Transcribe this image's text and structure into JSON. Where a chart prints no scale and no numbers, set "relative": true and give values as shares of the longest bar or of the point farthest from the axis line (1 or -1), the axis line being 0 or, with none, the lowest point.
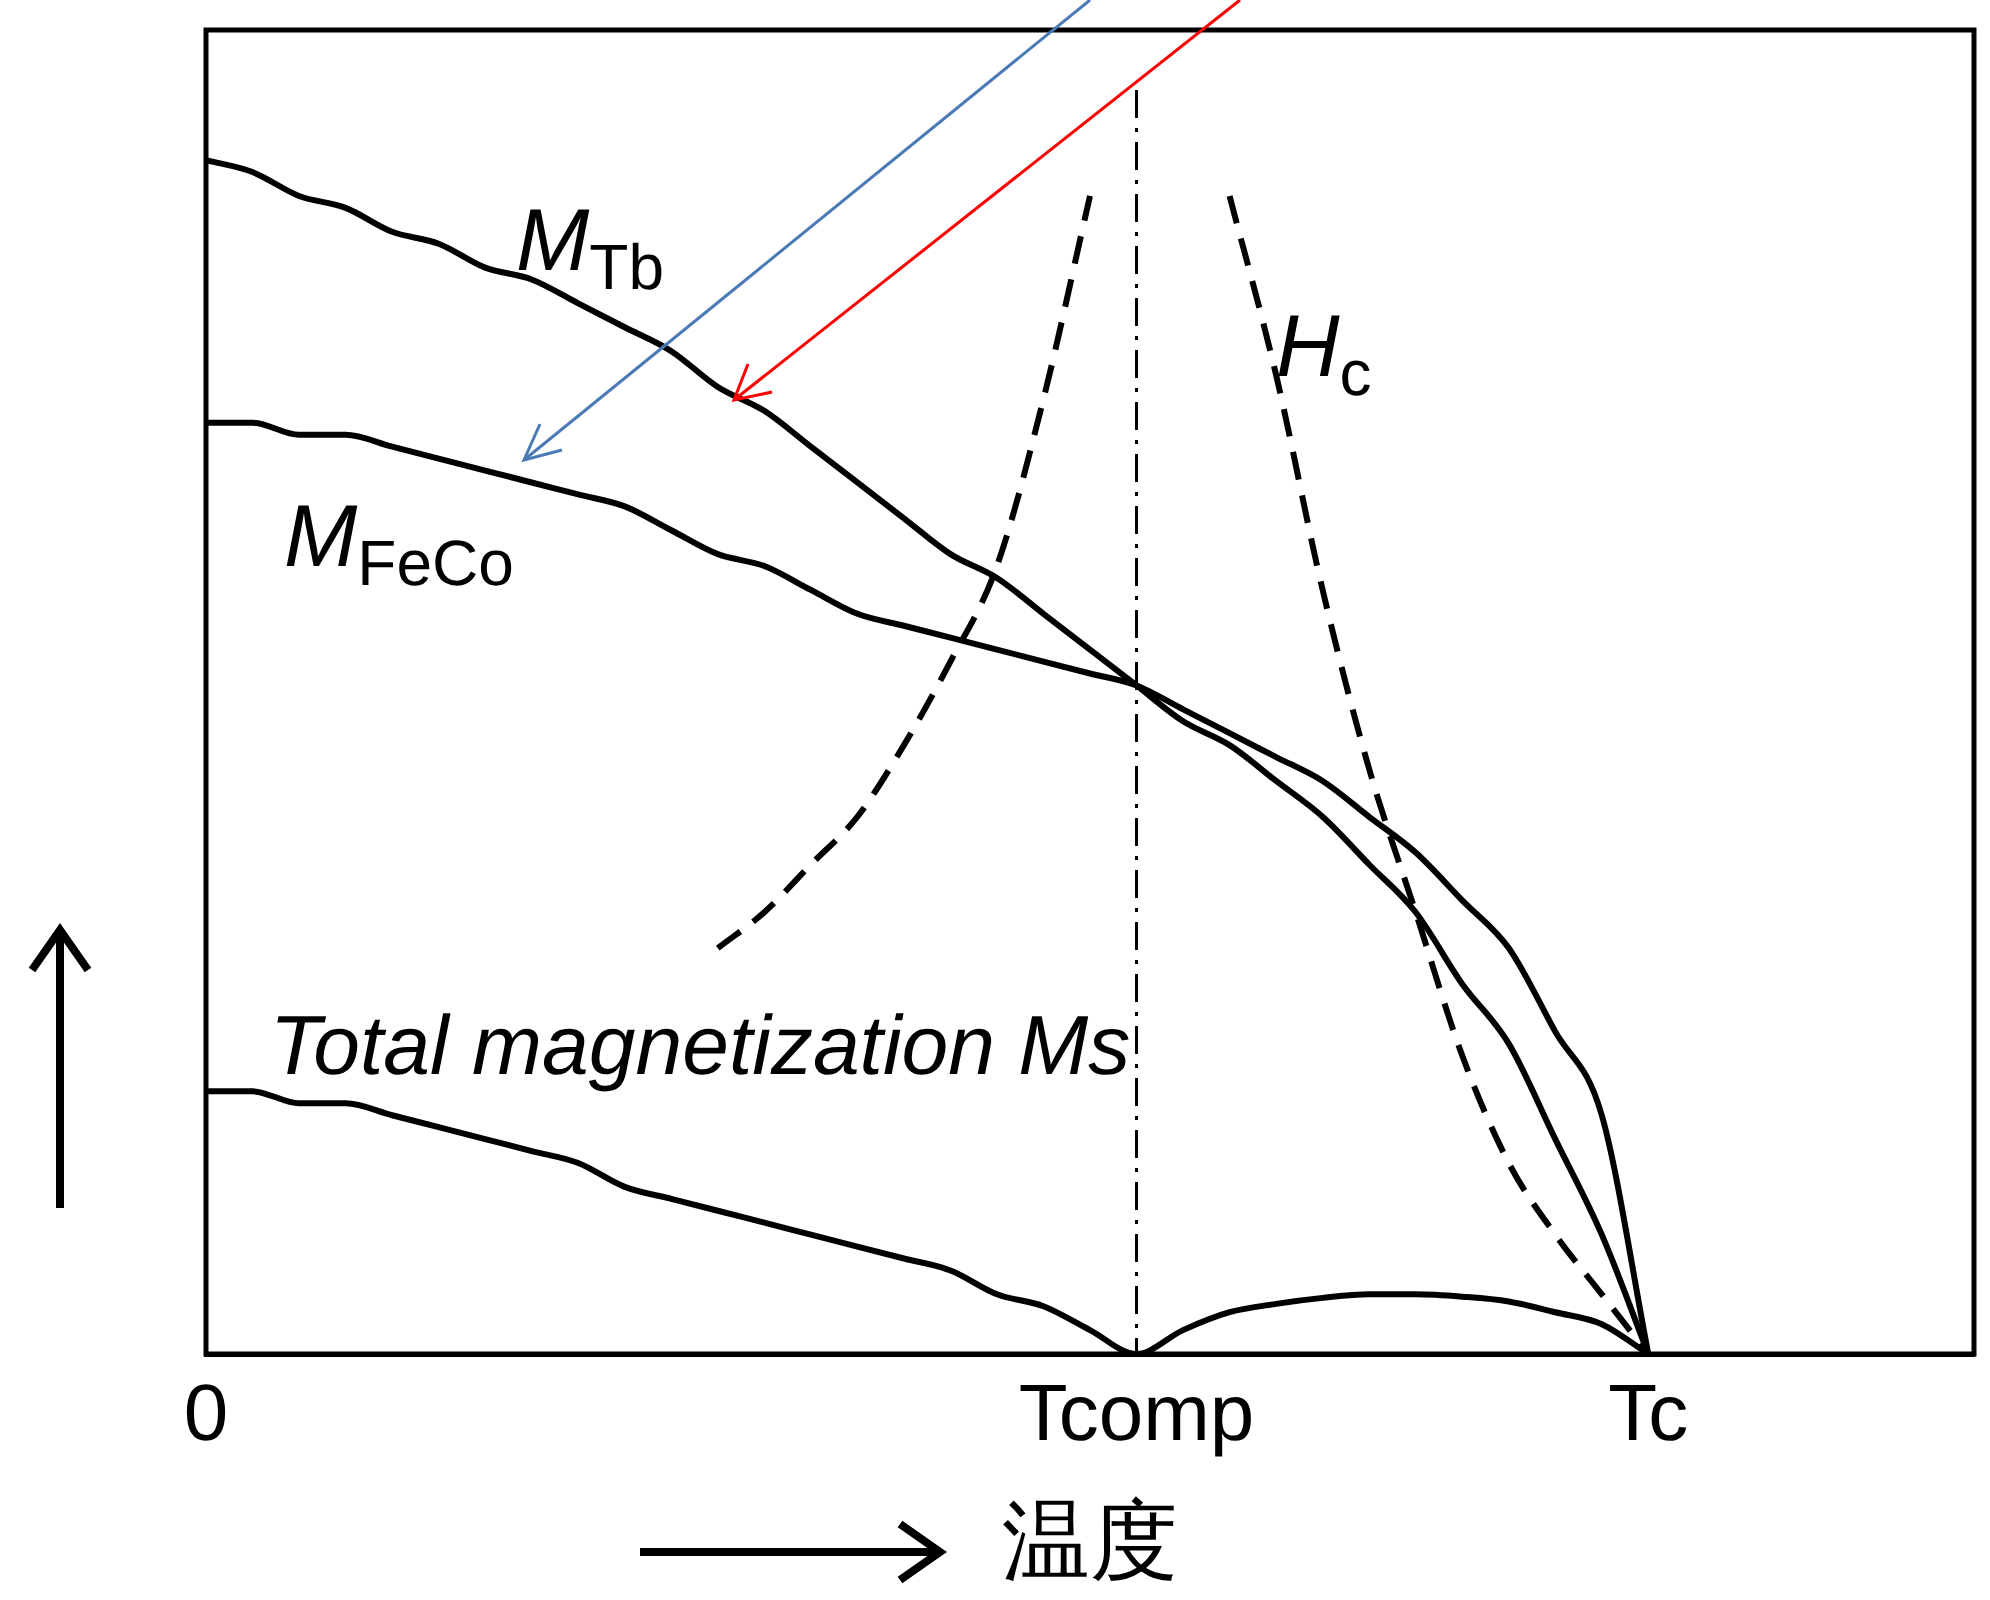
{
  "chart_data": {
    "type": "line",
    "relative": true,
    "xlabel": "温度",
    "categories": [
      "0",
      null,
      null,
      null,
      null,
      null,
      null,
      null,
      null,
      null,
      null,
      null,
      null,
      null,
      null,
      null,
      null,
      null,
      null,
      null,
      "Tcomp",
      null,
      null,
      null,
      null,
      null,
      null,
      null,
      null,
      null,
      null,
      "Tc",
      null,
      null,
      null,
      null,
      null,
      null,
      null
    ],
    "tick_labels": "x",
    "grid": false,
    "legend": false,
    "series": [
      {
        "name": "M$_{Tb}$",
        "color": "#000000",
        "values": [
          1.0,
          0.99,
          0.97,
          0.96,
          0.94,
          0.93,
          0.91,
          0.9,
          0.88,
          0.86,
          0.84,
          0.81,
          0.79,
          0.76,
          0.73,
          0.7,
          0.67,
          0.65,
          0.62,
          0.59,
          0.56,
          0.53,
          0.51,
          0.48,
          0.45,
          0.41,
          0.37,
          0.31,
          0.26,
          0.18,
          0.1,
          0,
          null,
          null,
          null,
          null,
          null,
          null,
          null
        ]
      },
      {
        "name": "M$_{FeCo}$",
        "color": "#000000",
        "values": [
          0.78,
          0.78,
          0.77,
          0.77,
          0.76,
          0.75,
          0.74,
          0.73,
          0.72,
          0.71,
          0.69,
          0.67,
          0.66,
          0.64,
          0.62,
          0.61,
          0.6,
          0.59,
          0.58,
          0.57,
          0.56,
          0.54,
          0.52,
          0.5,
          0.48,
          0.45,
          0.42,
          0.38,
          0.34,
          0.27,
          0.2,
          0,
          null,
          null,
          null,
          null,
          null,
          null,
          null
        ]
      },
      {
        "name": "Total magnetization Ms",
        "color": "#000000",
        "values": [
          0.22,
          0.22,
          0.21,
          0.21,
          0.2,
          0.19,
          0.18,
          0.17,
          0.16,
          0.14,
          0.13,
          0.12,
          0.11,
          0.1,
          0.09,
          0.08,
          0.07,
          0.05,
          0.04,
          0.02,
          0,
          0.02,
          0.035,
          0.042,
          0.047,
          0.05,
          0.05,
          0.048,
          0.044,
          0.035,
          0.025,
          0,
          null,
          null,
          null,
          null,
          null,
          null,
          null
        ]
      },
      {
        "name": "H$_{c}$",
        "color": "#000000",
        "line_style": "dashed",
        "values": [
          null,
          null,
          null,
          null,
          null,
          null,
          null,
          null,
          null,
          null,
          null,
          0.34,
          0.37,
          0.41,
          0.45,
          0.51,
          0.58,
          0.66,
          0.8,
          0.97,
          null,
          null,
          0.97,
          0.82,
          0.64,
          0.49,
          0.37,
          0.25,
          0.16,
          0.1,
          0.05,
          0,
          null,
          null,
          null,
          null,
          null,
          null,
          null
        ]
      }
    ],
    "ref_lines": [
      {
        "axis": "x",
        "value": "Tcomp",
        "color": "#000000",
        "line_style": "dashed"
      }
    ]
  }
}
